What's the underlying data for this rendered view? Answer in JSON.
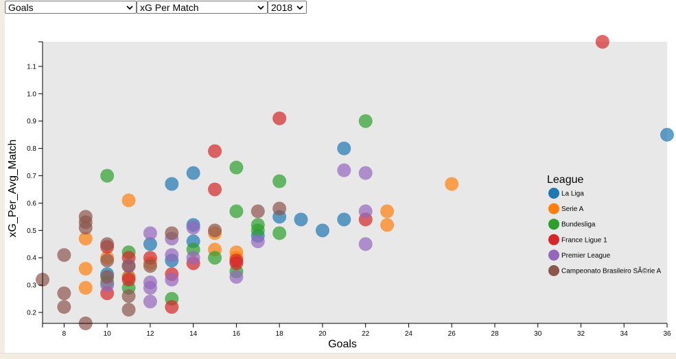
{
  "controls": {
    "x_select": "Goals",
    "y_select": "xG Per Match",
    "year_select": "2018"
  },
  "colors": {
    "La Liga": "#1f77b4",
    "Serie A": "#ff7f0e",
    "Bundesliga": "#2ca02c",
    "France Ligue 1": "#d62728",
    "Premier League": "#9467bd",
    "Campeonato Brasileiro SÃ©rie A": "#8c564b",
    "plot_background": "#e8e8e8"
  },
  "chart_data": {
    "type": "scatter",
    "title": "",
    "xlabel": "Goals",
    "ylabel": "xG_Per_Avg_Match",
    "xlim": [
      7,
      36
    ],
    "ylim": [
      0.16,
      1.19
    ],
    "x_ticks": [
      8,
      10,
      12,
      14,
      16,
      18,
      20,
      22,
      24,
      26,
      28,
      30,
      32,
      34,
      36
    ],
    "y_ticks": [
      0.2,
      0.3,
      0.4,
      0.5,
      0.6,
      0.7,
      0.8,
      0.9,
      1.0,
      1.1
    ],
    "legend_title": "League",
    "legend_position": "right",
    "series": [
      {
        "name": "La Liga",
        "points": [
          [
            36,
            0.85
          ],
          [
            21,
            0.8
          ],
          [
            14,
            0.71
          ],
          [
            13,
            0.67
          ],
          [
            19,
            0.54
          ],
          [
            21,
            0.54
          ],
          [
            20,
            0.5
          ],
          [
            18,
            0.55
          ],
          [
            14,
            0.52
          ],
          [
            14,
            0.46
          ],
          [
            12,
            0.45
          ],
          [
            13,
            0.39
          ],
          [
            10,
            0.34
          ],
          [
            17,
            0.48
          ],
          [
            11,
            0.33
          ]
        ]
      },
      {
        "name": "Serie A",
        "points": [
          [
            26,
            0.67
          ],
          [
            23,
            0.57
          ],
          [
            23,
            0.52
          ],
          [
            11,
            0.61
          ],
          [
            9,
            0.47
          ],
          [
            9,
            0.36
          ],
          [
            9,
            0.29
          ],
          [
            15,
            0.49
          ],
          [
            15,
            0.43
          ],
          [
            16,
            0.42
          ],
          [
            16,
            0.4
          ],
          [
            10,
            0.4
          ],
          [
            11,
            0.33
          ],
          [
            12,
            0.38
          ]
        ]
      },
      {
        "name": "Bundesliga",
        "points": [
          [
            22,
            0.9
          ],
          [
            10,
            0.7
          ],
          [
            16,
            0.73
          ],
          [
            18,
            0.68
          ],
          [
            16,
            0.57
          ],
          [
            17,
            0.52
          ],
          [
            17,
            0.5
          ],
          [
            18,
            0.49
          ],
          [
            15,
            0.4
          ],
          [
            11,
            0.42
          ],
          [
            14,
            0.43
          ],
          [
            13,
            0.25
          ],
          [
            16,
            0.35
          ],
          [
            11,
            0.29
          ],
          [
            10,
            0.31
          ]
        ]
      },
      {
        "name": "France Ligue 1",
        "points": [
          [
            33,
            1.19
          ],
          [
            18,
            0.91
          ],
          [
            15,
            0.79
          ],
          [
            15,
            0.65
          ],
          [
            22,
            0.54
          ],
          [
            16,
            0.39
          ],
          [
            11,
            0.4
          ],
          [
            13,
            0.34
          ],
          [
            14,
            0.38
          ],
          [
            10,
            0.27
          ],
          [
            11,
            0.32
          ],
          [
            13,
            0.22
          ],
          [
            12,
            0.4
          ],
          [
            10,
            0.44
          ],
          [
            16,
            0.38
          ]
        ]
      },
      {
        "name": "Premier League",
        "points": [
          [
            22,
            0.71
          ],
          [
            22,
            0.57
          ],
          [
            22,
            0.45
          ],
          [
            21,
            0.72
          ],
          [
            12,
            0.49
          ],
          [
            13,
            0.47
          ],
          [
            14,
            0.51
          ],
          [
            17,
            0.46
          ],
          [
            16,
            0.33
          ],
          [
            12,
            0.31
          ],
          [
            12,
            0.24
          ],
          [
            13,
            0.32
          ],
          [
            14,
            0.4
          ],
          [
            12,
            0.29
          ],
          [
            11,
            0.37
          ],
          [
            13,
            0.41
          ],
          [
            10,
            0.3
          ]
        ]
      },
      {
        "name": "Campeonato Brasileiro SÃ©rie A",
        "points": [
          [
            7,
            0.32
          ],
          [
            8,
            0.41
          ],
          [
            8,
            0.27
          ],
          [
            8,
            0.22
          ],
          [
            9,
            0.55
          ],
          [
            9,
            0.53
          ],
          [
            9,
            0.51
          ],
          [
            9,
            0.16
          ],
          [
            10,
            0.45
          ],
          [
            10,
            0.39
          ],
          [
            10,
            0.33
          ],
          [
            11,
            0.37
          ],
          [
            11,
            0.26
          ],
          [
            11,
            0.21
          ],
          [
            12,
            0.37
          ],
          [
            13,
            0.49
          ],
          [
            15,
            0.5
          ],
          [
            17,
            0.57
          ],
          [
            18,
            0.58
          ]
        ]
      }
    ]
  }
}
